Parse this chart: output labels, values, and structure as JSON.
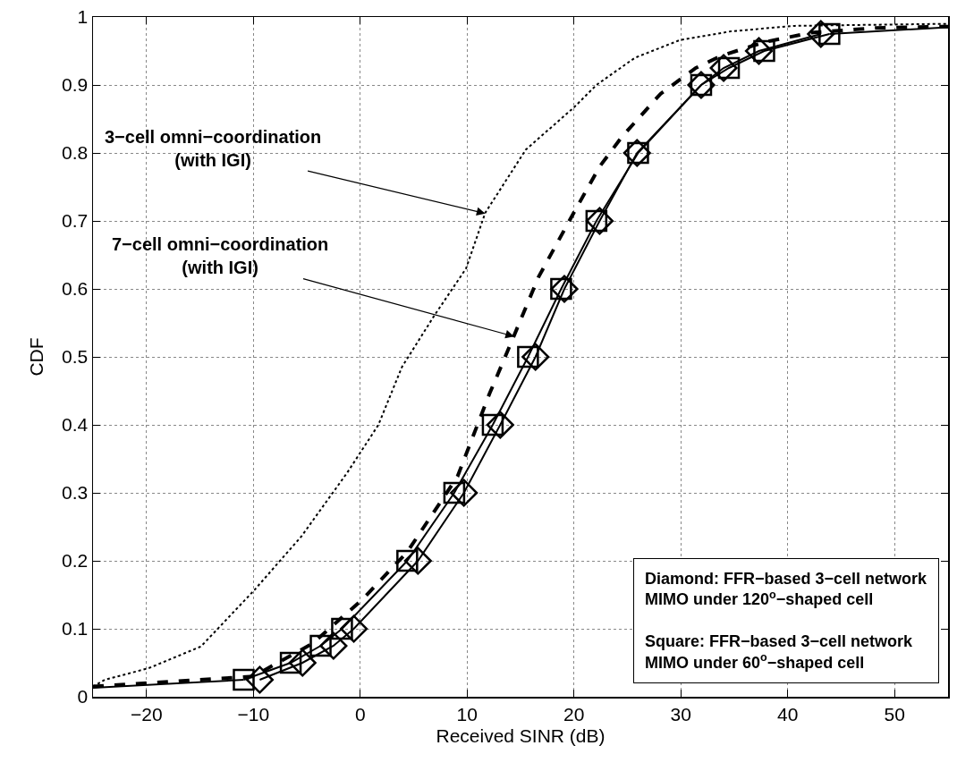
{
  "chart_data": {
    "type": "line",
    "xlabel": "Received SINR (dB)",
    "ylabel": "CDF",
    "xlim": [
      -25,
      55
    ],
    "xticks": [
      -20,
      -10,
      0,
      10,
      20,
      30,
      40,
      50
    ],
    "ylim": [
      0,
      1
    ],
    "yticks": [
      0,
      0.1,
      0.2,
      0.3,
      0.4,
      0.5,
      0.6,
      0.7,
      0.8,
      0.9,
      1
    ],
    "grid": true,
    "series": [
      {
        "color": "#000000",
        "line_style": "dotted",
        "marker": "none",
        "x": [
          -25,
          -23.9,
          -19.8,
          -14.9,
          -9.9,
          -5.5,
          -1.2,
          1.7,
          3.9,
          6.9,
          9.9,
          11.7,
          15.5,
          20,
          22.1,
          25.7,
          29.9,
          34.7,
          40.7,
          55
        ],
        "values": [
          0.015,
          0.025,
          0.042,
          0.074,
          0.157,
          0.236,
          0.33,
          0.4,
          0.485,
          0.56,
          0.63,
          0.712,
          0.805,
          0.867,
          0.9,
          0.94,
          0.966,
          0.979,
          0.987,
          0.99
        ]
      },
      {
        "color": "#000000",
        "line_style": "dashed",
        "marker": "none",
        "x": [
          -25,
          -10,
          -4.5,
          0.2,
          4.4,
          9.1,
          12.1,
          13.4,
          16.7,
          19.7,
          22.4,
          24.5,
          28.1,
          31.4,
          33.8,
          37.8,
          42.2,
          48.3,
          55
        ],
        "values": [
          0.015,
          0.03,
          0.078,
          0.143,
          0.213,
          0.324,
          0.446,
          0.494,
          0.618,
          0.704,
          0.78,
          0.824,
          0.887,
          0.925,
          0.943,
          0.963,
          0.977,
          0.984,
          0.986
        ]
      },
      {
        "color": "#000000",
        "line_style": "solid",
        "marker": "diamond",
        "x": [
          -9.4,
          -5.4,
          -2.5,
          -0.6,
          5.4,
          9.7,
          13.1,
          16.4,
          19.1,
          22.4,
          25.9,
          31.9,
          34,
          37.3,
          43.1
        ],
        "values": [
          0.025,
          0.05,
          0.075,
          0.1,
          0.2,
          0.3,
          0.4,
          0.5,
          0.6,
          0.7,
          0.8,
          0.9,
          0.925,
          0.95,
          0.975
        ]
      },
      {
        "color": "#000000",
        "line_style": "solid",
        "marker": "square",
        "x": [
          -10.9,
          -6.5,
          -3.7,
          -1.7,
          4.4,
          8.8,
          12.4,
          15.7,
          18.8,
          22.1,
          26,
          31.9,
          34.5,
          37.8,
          43.9
        ],
        "values": [
          0.025,
          0.05,
          0.075,
          0.1,
          0.2,
          0.3,
          0.4,
          0.5,
          0.6,
          0.7,
          0.8,
          0.9,
          0.925,
          0.95,
          0.975
        ]
      },
      {
        "color": "#000000",
        "line_style": "solid",
        "marker": "none",
        "x": [
          -25,
          -10.9
        ],
        "values": [
          0.013,
          0.025
        ]
      },
      {
        "color": "#000000",
        "line_style": "solid",
        "marker": "none",
        "x": [
          43.9,
          55
        ],
        "values": [
          0.975,
          0.985
        ]
      }
    ],
    "annotations": [
      {
        "text": "3−cell omni−coordination\n(with IGI)",
        "x": 11.7,
        "y": 0.711
      },
      {
        "text": "7−cell omni−coordination\n(with IGI)",
        "x": 14.4,
        "y": 0.53
      },
      "Diamond: FFR−based 3−cell network\nMIMO under 120$^{o}$−shaped cell\n\nSquare: FFR−based 3−cell network\nMIMO under 60$^{o}$−shaped cell"
    ]
  }
}
